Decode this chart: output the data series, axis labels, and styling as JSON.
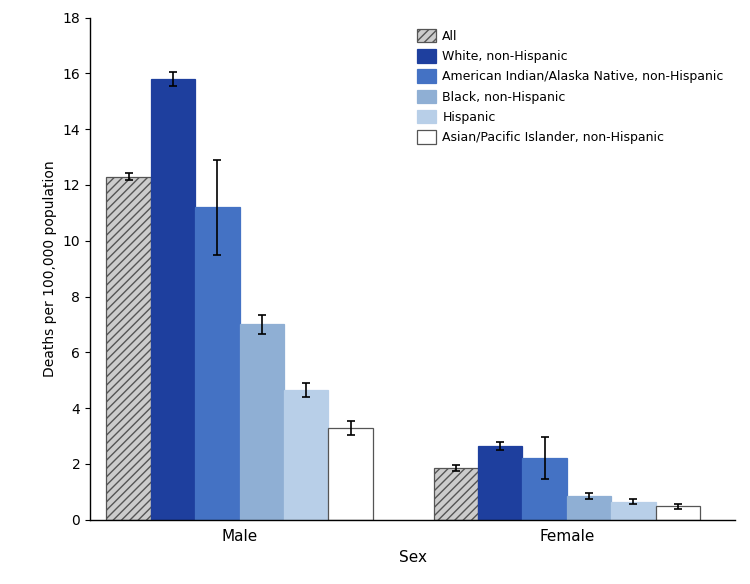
{
  "categories": [
    "Male",
    "Female"
  ],
  "groups": [
    "All",
    "White, non-Hispanic",
    "American Indian/Alaska Native, non-Hispanic",
    "Black, non-Hispanic",
    "Hispanic",
    "Asian/Pacific Islander, non-Hispanic"
  ],
  "values": {
    "Male": [
      12.3,
      15.8,
      11.2,
      7.0,
      4.65,
      3.3
    ],
    "Female": [
      1.85,
      2.65,
      2.2,
      0.85,
      0.65,
      0.48
    ]
  },
  "errors": {
    "Male": [
      0.12,
      0.25,
      1.7,
      0.35,
      0.25,
      0.25
    ],
    "Female": [
      0.1,
      0.15,
      0.75,
      0.1,
      0.08,
      0.08
    ]
  },
  "bar_facecolors": [
    "#cccccc",
    "#1e3f9e",
    "#4472c4",
    "#8fafd4",
    "#b8cfe8",
    "#ffffff"
  ],
  "bar_edgecolors": [
    "#555555",
    "#1e3f9e",
    "#4472c4",
    "#8fafd4",
    "#b8cfe8",
    "#555555"
  ],
  "bar_hatches": [
    "////",
    "",
    "",
    "",
    "",
    ""
  ],
  "legend_facecolors": [
    "#cccccc",
    "#1e3f9e",
    "#4472c4",
    "#8fafd4",
    "#b8cfe8",
    "#ffffff"
  ],
  "legend_edgecolors": [
    "#555555",
    "#1e3f9e",
    "#4472c4",
    "#8fafd4",
    "#b8cfe8",
    "#555555"
  ],
  "legend_hatches": [
    "////",
    "",
    "",
    "",
    "",
    ""
  ],
  "legend_labels": [
    "All",
    "White, non-Hispanic",
    "American Indian/Alaska Native, non-Hispanic",
    "Black, non-Hispanic",
    "Hispanic",
    "Asian/Pacific Islander, non-Hispanic"
  ],
  "ylabel": "Deaths per 100,000 population",
  "xlabel": "Sex",
  "ylim": [
    0,
    18
  ],
  "yticks": [
    0,
    2,
    4,
    6,
    8,
    10,
    12,
    14,
    16,
    18
  ],
  "group_centers": [
    0.32,
    1.02
  ],
  "bar_width": 0.095,
  "background_color": "#ffffff"
}
